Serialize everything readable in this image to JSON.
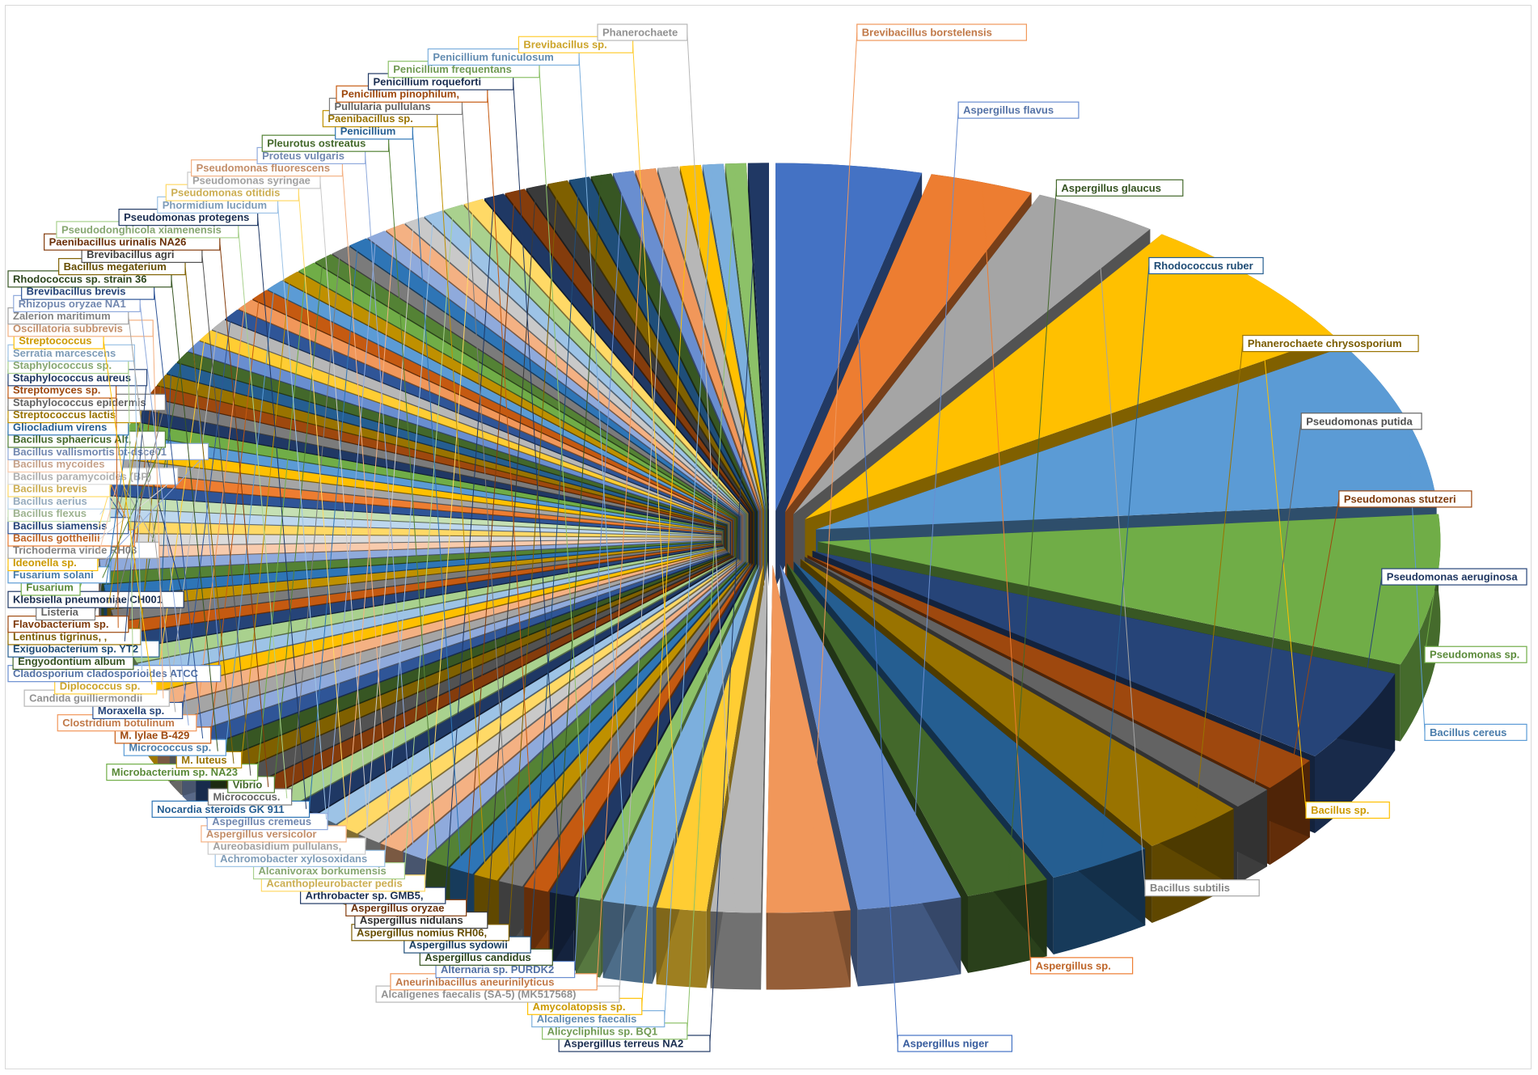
{
  "chart_data": {
    "type": "pie",
    "style": "3d-exploded",
    "legend": "none",
    "title": "",
    "slices": [
      {
        "label": "Aspergillus niger",
        "value": 3.5,
        "color": "#4472c4"
      },
      {
        "label": "Aspergillus sp.",
        "value": 2.5,
        "color": "#ed7d31"
      },
      {
        "label": "Bacillus subtilis",
        "value": 3.0,
        "color": "#a5a5a5"
      },
      {
        "label": "Bacillus sp.",
        "value": 6.0,
        "color": "#ffc000"
      },
      {
        "label": "Bacillus cereus",
        "value": 7.0,
        "color": "#5b9bd5"
      },
      {
        "label": "Pseudomonas sp.",
        "value": 6.5,
        "color": "#70ad47"
      },
      {
        "label": "Pseudomonas aeruginosa",
        "value": 4.0,
        "color": "#264478"
      },
      {
        "label": "Pseudomonas stutzeri",
        "value": 1.5,
        "color": "#9e480e"
      },
      {
        "label": "Pseudomonas putida",
        "value": 1.0,
        "color": "#636363"
      },
      {
        "label": "Phanerochaete chrysosporium",
        "value": 2.5,
        "color": "#997300"
      },
      {
        "label": "Rhodococcus ruber",
        "value": 2.5,
        "color": "#255e91"
      },
      {
        "label": "Aspergillus glaucus",
        "value": 2.0,
        "color": "#43682b"
      },
      {
        "label": "Aspergillus flavus",
        "value": 2.5,
        "color": "#698ed0"
      },
      {
        "label": "Brevibacillus borstelensis",
        "value": 2.0,
        "color": "#f1975a"
      },
      {
        "label": "Phanerochaete",
        "value": 1.2,
        "color": "#b7b7b7"
      },
      {
        "label": "Brevibacillus sp.",
        "value": 1.2,
        "color": "#ffcd33"
      },
      {
        "label": "Penicillium funiculosum",
        "value": 1.2,
        "color": "#7cafdd"
      },
      {
        "label": "Penicillium frequentans",
        "value": 0.6,
        "color": "#8cc168"
      },
      {
        "label": "Penicillium roqueforti",
        "value": 0.6,
        "color": "#203864"
      },
      {
        "label": "Penicillium pinophilum,",
        "value": 0.6,
        "color": "#c55a11"
      },
      {
        "label": "Pullularia pullulans",
        "value": 0.6,
        "color": "#7b7b7b"
      },
      {
        "label": "Paenibacillus sp.",
        "value": 0.6,
        "color": "#bf9000"
      },
      {
        "label": "Penicillium",
        "value": 0.6,
        "color": "#2e75b6"
      },
      {
        "label": "Pleurotus ostreatus",
        "value": 0.6,
        "color": "#548235"
      },
      {
        "label": "Proteus vulgaris",
        "value": 0.6,
        "color": "#8faadc"
      },
      {
        "label": "Pseudomonas fluorescens",
        "value": 0.6,
        "color": "#f4b183"
      },
      {
        "label": "Pseudomonas syringae",
        "value": 0.6,
        "color": "#c9c9c9"
      },
      {
        "label": "Pseudomonas otitidis",
        "value": 0.6,
        "color": "#ffd966"
      },
      {
        "label": "Phormidium lucidum",
        "value": 0.6,
        "color": "#9dc3e6"
      },
      {
        "label": "Pseudomonas protegens",
        "value": 0.6,
        "color": "#1f3864"
      },
      {
        "label": "Pseudodonghicola xiamenensis",
        "value": 0.6,
        "color": "#a9d18e"
      },
      {
        "label": "Paenibacillus urinalis NA26",
        "value": 0.6,
        "color": "#843c0c"
      },
      {
        "label": "Brevibacillus agri",
        "value": 0.6,
        "color": "#525252"
      },
      {
        "label": "Bacillus megaterium",
        "value": 0.6,
        "color": "#7f6000"
      },
      {
        "label": "Rhodococcus sp. strain 36",
        "value": 0.6,
        "color": "#375623"
      },
      {
        "label": "Brevibacillus brevis",
        "value": 0.6,
        "color": "#2f5597"
      },
      {
        "label": "Rhizopus oryzae NA1",
        "value": 0.6,
        "color": "#8faadc"
      },
      {
        "label": "Zalerion maritimum",
        "value": 0.6,
        "color": "#a5a5a5"
      },
      {
        "label": "Oscillatoria subbrevis",
        "value": 0.6,
        "color": "#f4b183"
      },
      {
        "label": "Streptococcus",
        "value": 0.6,
        "color": "#ffc000"
      },
      {
        "label": "Serratia marcescens",
        "value": 0.6,
        "color": "#9dc3e6"
      },
      {
        "label": "Staphylococcus sp.",
        "value": 0.6,
        "color": "#a9d18e"
      },
      {
        "label": "Staphylococcus aureus",
        "value": 0.6,
        "color": "#264478"
      },
      {
        "label": "Streptomyces sp.",
        "value": 0.5,
        "color": "#c55a11"
      },
      {
        "label": "Staphylococcus epidermis",
        "value": 0.5,
        "color": "#7b7b7b"
      },
      {
        "label": "Streptococcus lactis",
        "value": 0.5,
        "color": "#bf9000"
      },
      {
        "label": "Gliocladium virens",
        "value": 0.5,
        "color": "#2e75b6"
      },
      {
        "label": "Bacillus sphaericus Alt,",
        "value": 0.5,
        "color": "#548235"
      },
      {
        "label": "Bacillus vallismortis bt-dsce01",
        "value": 0.5,
        "color": "#8faadc"
      },
      {
        "label": "Bacillus mycoides",
        "value": 0.5,
        "color": "#f8cbad"
      },
      {
        "label": "Bacillus paramycoides (BP)",
        "value": 0.5,
        "color": "#dbdbdb"
      },
      {
        "label": "Bacillus brevis",
        "value": 0.5,
        "color": "#ffd966"
      },
      {
        "label": "Bacillus aerius",
        "value": 0.5,
        "color": "#bdd7ee"
      },
      {
        "label": "Bacillus flexus",
        "value": 0.5,
        "color": "#c5e0b4"
      },
      {
        "label": "Bacillus siamensis",
        "value": 0.5,
        "color": "#2f5597"
      },
      {
        "label": "Bacillus gottheilii",
        "value": 0.5,
        "color": "#ed7d31"
      },
      {
        "label": "Trichoderma viride RH03",
        "value": 0.5,
        "color": "#a5a5a5"
      },
      {
        "label": "Ideonella sp.",
        "value": 0.5,
        "color": "#ffc000"
      },
      {
        "label": "Fusarium solani",
        "value": 0.5,
        "color": "#5b9bd5"
      },
      {
        "label": "Fusarium",
        "value": 0.5,
        "color": "#70ad47"
      },
      {
        "label": "Klebsiella pneumoniae CH001",
        "value": 0.5,
        "color": "#203864"
      },
      {
        "label": "Listeria",
        "value": 0.5,
        "color": "#7b7b7b"
      },
      {
        "label": "Flavobacterium sp.",
        "value": 0.5,
        "color": "#9e480e"
      },
      {
        "label": "Lentinus tigrinus, ,",
        "value": 0.5,
        "color": "#997300"
      },
      {
        "label": "Exiguobacterium sp. YT2",
        "value": 0.5,
        "color": "#255e91"
      },
      {
        "label": "Engyodontium album",
        "value": 0.5,
        "color": "#43682b"
      },
      {
        "label": "Cladosporium cladosporioides ATCC",
        "value": 0.5,
        "color": "#698ed0"
      },
      {
        "label": "Diplococcus sp.",
        "value": 0.5,
        "color": "#ffcd33"
      },
      {
        "label": "Candida guilliermondii",
        "value": 0.5,
        "color": "#b7b7b7"
      },
      {
        "label": "Moraxella sp.",
        "value": 0.5,
        "color": "#2f5597"
      },
      {
        "label": "Clostridium botulinum",
        "value": 0.5,
        "color": "#f1975a"
      },
      {
        "label": "M. lylae B-429",
        "value": 0.5,
        "color": "#c55a11"
      },
      {
        "label": "Micrococcus sp.",
        "value": 0.5,
        "color": "#5b9bd5"
      },
      {
        "label": "M. luteus",
        "value": 0.5,
        "color": "#bf9000"
      },
      {
        "label": "Microbacterium sp. NA23",
        "value": 0.5,
        "color": "#70ad47"
      },
      {
        "label": "Vibrio",
        "value": 0.5,
        "color": "#548235"
      },
      {
        "label": "Micrococcus.",
        "value": 0.5,
        "color": "#7b7b7b"
      },
      {
        "label": "Nocardia steroids GK 911",
        "value": 0.5,
        "color": "#2e75b6"
      },
      {
        "label": "Aspegillus cremeus",
        "value": 0.5,
        "color": "#8faadc"
      },
      {
        "label": "Aspergillus versicolor",
        "value": 0.5,
        "color": "#f4b183"
      },
      {
        "label": "Aureobasidium pullulans,",
        "value": 0.5,
        "color": "#c9c9c9"
      },
      {
        "label": "Achromobacter xylosoxidans",
        "value": 0.5,
        "color": "#9dc3e6"
      },
      {
        "label": "Alcanivorax borkumensis",
        "value": 0.5,
        "color": "#a9d18e"
      },
      {
        "label": "Acanthopleurobacter pedis",
        "value": 0.5,
        "color": "#ffd966"
      },
      {
        "label": "Arthrobacter sp. GMB5,",
        "value": 0.5,
        "color": "#1f3864"
      },
      {
        "label": "Aspergillus oryzae",
        "value": 0.5,
        "color": "#843c0c"
      },
      {
        "label": "Aspergillus nidulans",
        "value": 0.5,
        "color": "#3a3a3a"
      },
      {
        "label": "Aspergillus nomius RH06,",
        "value": 0.5,
        "color": "#7f6000"
      },
      {
        "label": "Aspergillus sydowii",
        "value": 0.5,
        "color": "#1f4e79"
      },
      {
        "label": "Aspergillus candidus",
        "value": 0.5,
        "color": "#375623"
      },
      {
        "label": "Alternaria sp. PURDK2",
        "value": 0.5,
        "color": "#698ed0"
      },
      {
        "label": "Aneurinibacillus aneurinilyticus",
        "value": 0.5,
        "color": "#f1975a"
      },
      {
        "label": "Alcaligenes faecalis (SA-5) (MK517568)",
        "value": 0.5,
        "color": "#b7b7b7"
      },
      {
        "label": "Amycolatopsis sp.",
        "value": 0.5,
        "color": "#ffc000"
      },
      {
        "label": "Alcaligenes faecalis",
        "value": 0.5,
        "color": "#7cafdd"
      },
      {
        "label": "Alicycliphilus sp. BQ1",
        "value": 0.5,
        "color": "#8cc168"
      },
      {
        "label": "Aspergillus terreus NA2",
        "value": 0.5,
        "color": "#203864"
      }
    ]
  }
}
